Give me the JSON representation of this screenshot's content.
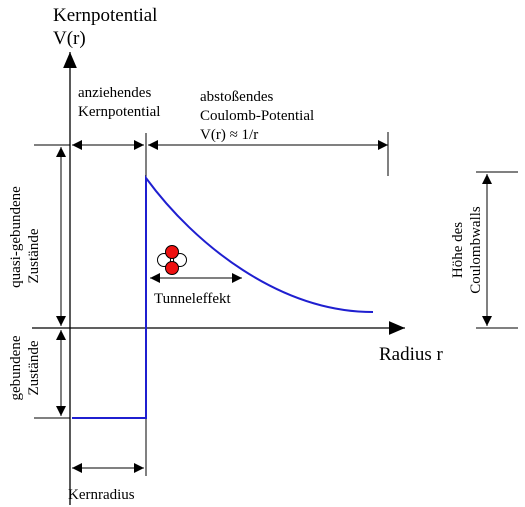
{
  "axes": {
    "y_title": "Kernpotential",
    "y_symbol": "V(r)",
    "x_label": "Radius r"
  },
  "regions": {
    "attractive": [
      "anziehendes",
      "Kernpotential"
    ],
    "repulsive": [
      "abstoßendes",
      "Coulomb-Potential",
      "V(r) ≈ 1/r"
    ]
  },
  "states": {
    "quasi_bound": [
      "quasi-gebundene",
      "Zustände"
    ],
    "bound": [
      "gebundene",
      "Zustände"
    ]
  },
  "wall_height": [
    "Höhe des",
    "Coulombwalls"
  ],
  "tunnel_label": "Tunneleffekt",
  "nuclear_radius_label": "Kernradius",
  "colors": {
    "potential_line": "#1f1fd0",
    "particle_red": "#ee1111",
    "particle_white": "#ffffff"
  }
}
